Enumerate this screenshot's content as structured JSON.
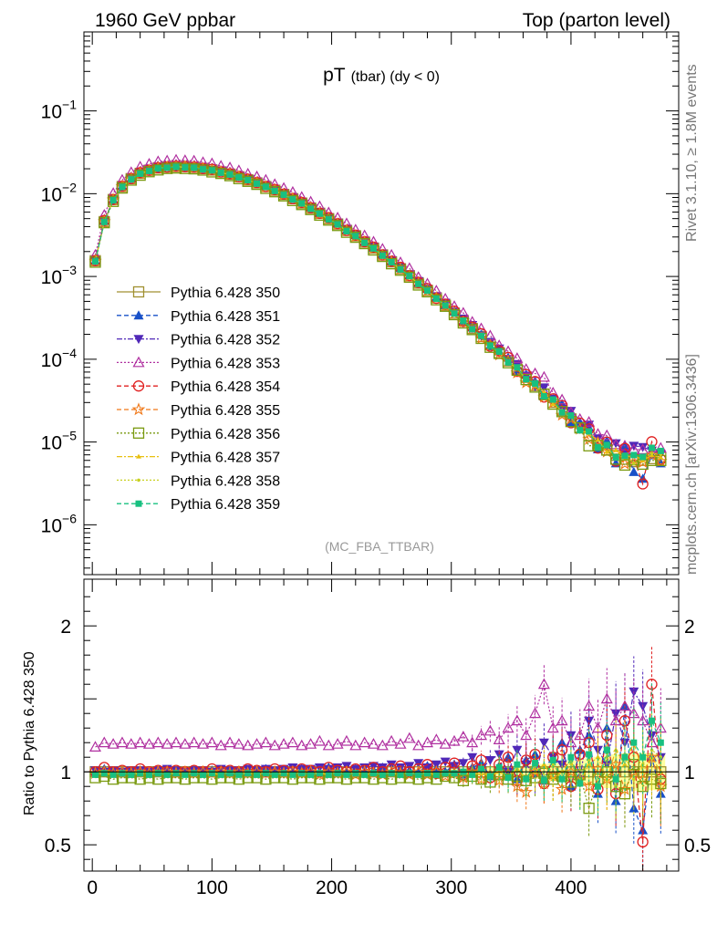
{
  "header": {
    "left_title": "1960 GeV ppbar",
    "right_title": "Top (parton level)"
  },
  "plot_title": {
    "main": "pT",
    "sub": "(tbar) (dy < 0)"
  },
  "analysis_tag": "(MC_FBA_TTBAR)",
  "side_labels": {
    "rivet": "Rivet 3.1.10, ≥ 1.8M events",
    "mcplots": "mcplots.cern.ch [arXiv:1306.3436]"
  },
  "ratio_ylabel": "Ratio to Pythia 6.428 350",
  "colors": {
    "s350": "#a09030",
    "s351": "#1850c8",
    "s352": "#5028b8",
    "s353": "#b030a0",
    "s354": "#e02020",
    "s355": "#f07818",
    "s356": "#7a9a10",
    "s357": "#e8c010",
    "s358": "#c8d020",
    "s359": "#18c080",
    "band": "#ffff80"
  },
  "chart_data": {
    "type": "scatter",
    "x_label": "",
    "main": {
      "y_scale": "log",
      "ylim": [
        2.5e-07,
        0.9
      ],
      "y_ticks": [
        {
          "value": 1e-06,
          "label": "10",
          "exp": "−6"
        },
        {
          "value": 1e-05,
          "label": "10",
          "exp": "−5"
        },
        {
          "value": 0.0001,
          "label": "10",
          "exp": "−4"
        },
        {
          "value": 0.001,
          "label": "10",
          "exp": "−3"
        },
        {
          "value": 0.01,
          "label": "10",
          "exp": "−2"
        },
        {
          "value": 0.1,
          "label": "10",
          "exp": "−1"
        }
      ]
    },
    "ratio": {
      "ylim": [
        0.32,
        2.32
      ],
      "y_ticks": [
        {
          "value": 0.5,
          "label": "0.5"
        },
        {
          "value": 1,
          "label": "1"
        },
        {
          "value": 2,
          "label": "2"
        }
      ]
    },
    "xlim": [
      -7,
      490
    ],
    "x_ticks": [
      {
        "value": 0,
        "label": "0"
      },
      {
        "value": 100,
        "label": "100"
      },
      {
        "value": 200,
        "label": "200"
      },
      {
        "value": 300,
        "label": "300"
      },
      {
        "value": 400,
        "label": "400"
      }
    ],
    "x": [
      2.5,
      10,
      17.5,
      25,
      32.5,
      40,
      47.5,
      55,
      62.5,
      70,
      77.5,
      85,
      92.5,
      100,
      107.5,
      115,
      122.5,
      130,
      137.5,
      145,
      152.5,
      160,
      167.5,
      175,
      182.5,
      190,
      197.5,
      205,
      212.5,
      220,
      227.5,
      235,
      242.5,
      250,
      257.5,
      265,
      272.5,
      280,
      287.5,
      295,
      302.5,
      310,
      317.5,
      325,
      332.5,
      340,
      347.5,
      355,
      362.5,
      370,
      377.5,
      385,
      392.5,
      400,
      407.5,
      415,
      422.5,
      430,
      437.5,
      445,
      452.5,
      460,
      467.5,
      475
    ],
    "reference": [
      0.00155,
      0.0046,
      0.0085,
      0.0122,
      0.0152,
      0.0176,
      0.0192,
      0.0204,
      0.021,
      0.0213,
      0.0212,
      0.0208,
      0.0201,
      0.0193,
      0.0183,
      0.0172,
      0.016,
      0.0147,
      0.0135,
      0.0122,
      0.011,
      0.0098,
      0.0087,
      0.0077,
      0.0067,
      0.0058,
      0.005,
      0.0043,
      0.0036,
      0.0031,
      0.0026,
      0.0022,
      0.00182,
      0.0015,
      0.00124,
      0.00102,
      0.00083,
      0.00068,
      0.00055,
      0.00045,
      0.00036,
      0.000292,
      0.000235,
      0.000188,
      0.00015,
      0.00012,
      9.55e-05,
      7.6e-05,
      6.05e-05,
      4.8e-05,
      3.8e-05,
      3.02e-05,
      2.4e-05,
      1.9e-05,
      1.51e-05,
      1.2e-05,
      9.6e-06,
      8e-06,
      6.9e-06,
      6.2e-06,
      5.8e-06,
      6e-06,
      6.3e-06,
      6.5e-06
    ],
    "series": [
      {
        "name": "Pythia 6.428 350",
        "key": "s350",
        "marker": "square-open",
        "line": "solid",
        "ratio": [
          1,
          1,
          1,
          1,
          1,
          1,
          1,
          1,
          1,
          1,
          1,
          1,
          1,
          1,
          1,
          1,
          1,
          1,
          1,
          1,
          1,
          1,
          1,
          1,
          1,
          1,
          1,
          1,
          1,
          1,
          1,
          1,
          1,
          1,
          1,
          1,
          1,
          1,
          1,
          1,
          1,
          1,
          1,
          1,
          1,
          1,
          1,
          1,
          1,
          1,
          1,
          1,
          1,
          1,
          1,
          1,
          1,
          1,
          1,
          1,
          1,
          1,
          1,
          1
        ]
      },
      {
        "name": "Pythia 6.428 351",
        "key": "s351",
        "marker": "triangle-up",
        "line": "dashed",
        "ratio": [
          1.0,
          1.02,
          0.99,
          1.01,
          1.0,
          1.01,
          1.0,
          1.0,
          1.01,
          1.0,
          1.0,
          1.01,
          1.0,
          1.01,
          1.0,
          1.0,
          1.01,
          1.0,
          1.01,
          1.02,
          1.0,
          1.01,
          1.0,
          1.02,
          1.01,
          1.0,
          1.03,
          1.01,
          1.0,
          1.02,
          1.0,
          1.01,
          1.03,
          1.0,
          1.02,
          1.01,
          1.0,
          1.04,
          1.02,
          1.0,
          1.05,
          0.98,
          1.03,
          1.06,
          0.97,
          1.04,
          1.1,
          0.95,
          1.08,
          1.12,
          0.94,
          1.09,
          1.2,
          0.9,
          1.15,
          1.25,
          0.85,
          1.3,
          0.8,
          1.45,
          0.75,
          0.6,
          1.1,
          0.85
        ]
      },
      {
        "name": "Pythia 6.428 352",
        "key": "s352",
        "marker": "triangle-down",
        "line": "dashdot",
        "ratio": [
          1.01,
          1.0,
          1.01,
          1.0,
          1.01,
          1.01,
          1.0,
          1.01,
          1.02,
          1.01,
          1.0,
          1.01,
          1.01,
          1.0,
          1.02,
          1.01,
          1.01,
          1.02,
          1.01,
          1.02,
          1.01,
          1.02,
          1.03,
          1.02,
          1.02,
          1.03,
          1.02,
          1.03,
          1.04,
          1.02,
          1.03,
          1.04,
          1.03,
          1.05,
          1.03,
          1.04,
          1.06,
          1.03,
          1.05,
          1.07,
          1.04,
          1.06,
          1.1,
          1.02,
          1.08,
          1.12,
          1.0,
          1.15,
          1.05,
          0.98,
          1.2,
          1.1,
          1.05,
          1.25,
          0.95,
          1.35,
          1.15,
          1.05,
          1.4,
          1.2,
          1.55,
          1.45,
          1.25,
          1.1
        ]
      },
      {
        "name": "Pythia 6.428 353",
        "key": "s353",
        "marker": "triangle-up-open",
        "line": "dotted",
        "ratio": [
          1.17,
          1.2,
          1.19,
          1.2,
          1.19,
          1.2,
          1.19,
          1.2,
          1.19,
          1.2,
          1.19,
          1.2,
          1.19,
          1.2,
          1.18,
          1.2,
          1.19,
          1.18,
          1.19,
          1.2,
          1.18,
          1.19,
          1.2,
          1.18,
          1.19,
          1.21,
          1.18,
          1.19,
          1.21,
          1.18,
          1.2,
          1.19,
          1.18,
          1.21,
          1.19,
          1.23,
          1.18,
          1.2,
          1.22,
          1.19,
          1.21,
          1.24,
          1.2,
          1.25,
          1.28,
          1.22,
          1.3,
          1.35,
          1.25,
          1.4,
          1.6,
          1.3,
          1.35,
          1.2,
          1.25,
          1.45,
          1.3,
          1.5,
          1.35,
          1.45,
          1.4,
          1.35,
          1.2,
          1.3
        ]
      },
      {
        "name": "Pythia 6.428 354",
        "key": "s354",
        "marker": "circle-open",
        "line": "dashed",
        "ratio": [
          1.0,
          1.03,
          1.0,
          1.01,
          1.0,
          1.02,
          1.0,
          1.01,
          1.0,
          1.01,
          1.0,
          1.01,
          1.0,
          1.02,
          1.0,
          1.01,
          1.0,
          1.02,
          1.01,
          1.0,
          1.02,
          1.01,
          1.0,
          1.02,
          1.01,
          1.0,
          1.03,
          1.01,
          1.0,
          1.02,
          1.01,
          1.03,
          1.0,
          1.02,
          1.04,
          1.0,
          1.02,
          1.05,
          0.99,
          1.03,
          1.06,
          0.98,
          1.04,
          1.08,
          0.96,
          1.05,
          1.1,
          0.94,
          1.08,
          1.12,
          0.92,
          1.1,
          1.15,
          0.9,
          1.12,
          1.2,
          0.88,
          1.25,
          0.85,
          1.35,
          1.1,
          0.52,
          1.6,
          0.95
        ]
      },
      {
        "name": "Pythia 6.428 355",
        "key": "s355",
        "marker": "star-open",
        "line": "dashed",
        "ratio": [
          0.99,
          1.0,
          0.99,
          1.0,
          0.99,
          1.0,
          0.99,
          1.0,
          1.0,
          0.99,
          1.0,
          0.99,
          1.0,
          0.99,
          1.0,
          0.99,
          1.0,
          0.99,
          1.0,
          0.99,
          1.0,
          0.99,
          1.0,
          0.99,
          1.0,
          0.98,
          1.0,
          0.99,
          1.0,
          0.98,
          1.0,
          0.99,
          0.98,
          1.0,
          0.99,
          0.98,
          1.0,
          0.98,
          1.0,
          0.97,
          0.99,
          0.96,
          1.0,
          0.95,
          0.98,
          0.94,
          0.99,
          0.9,
          0.86,
          1.0,
          0.92,
          0.98,
          0.88,
          1.0,
          0.95,
          0.9,
          1.02,
          0.95,
          1.05,
          0.88,
          1.0,
          0.95,
          1.1,
          0.9
        ]
      },
      {
        "name": "Pythia 6.428 356",
        "key": "s356",
        "marker": "square-open",
        "line": "dotted",
        "ratio": [
          0.96,
          0.97,
          0.95,
          0.96,
          0.96,
          0.95,
          0.96,
          0.95,
          0.96,
          0.96,
          0.95,
          0.96,
          0.96,
          0.95,
          0.96,
          0.96,
          0.95,
          0.96,
          0.96,
          0.95,
          0.96,
          0.96,
          0.95,
          0.96,
          0.96,
          0.95,
          0.96,
          0.96,
          0.95,
          0.96,
          0.96,
          0.95,
          0.96,
          0.95,
          0.96,
          0.96,
          0.95,
          0.96,
          0.95,
          0.97,
          0.96,
          0.94,
          0.97,
          0.95,
          0.93,
          0.98,
          0.95,
          0.97,
          0.94,
          0.96,
          0.99,
          0.95,
          0.97,
          0.93,
          0.98,
          0.75,
          0.95,
          1.0,
          0.9,
          0.85,
          1.05,
          0.9,
          0.95,
          0.92
        ]
      },
      {
        "name": "Pythia 6.428 357",
        "key": "s357",
        "marker": "tri-small",
        "line": "dashdot",
        "ratio": [
          0.98,
          0.99,
          0.98,
          0.99,
          0.98,
          0.99,
          0.98,
          0.99,
          0.98,
          0.99,
          0.98,
          0.99,
          0.98,
          0.99,
          0.98,
          0.99,
          0.98,
          0.99,
          0.98,
          0.99,
          0.98,
          0.99,
          0.98,
          0.99,
          0.98,
          0.99,
          0.98,
          0.99,
          0.98,
          0.99,
          0.98,
          0.99,
          0.98,
          0.99,
          0.98,
          0.99,
          0.98,
          0.99,
          0.98,
          0.99,
          0.98,
          0.99,
          0.98,
          0.99,
          0.97,
          1.0,
          0.96,
          1.02,
          0.95,
          1.0,
          1.05,
          0.95,
          1.0,
          1.08,
          0.92,
          1.05,
          1.1,
          0.95,
          1.15,
          1.05,
          1.2,
          1.0,
          1.1,
          1.0
        ]
      },
      {
        "name": "Pythia 6.428 358",
        "key": "s358",
        "marker": "dot-small",
        "line": "dotted",
        "ratio": [
          0.99,
          1.0,
          0.99,
          1.0,
          0.99,
          1.0,
          0.99,
          1.0,
          0.99,
          1.0,
          0.99,
          1.0,
          0.99,
          1.0,
          0.99,
          1.0,
          0.99,
          1.0,
          0.99,
          1.0,
          0.99,
          1.0,
          0.99,
          1.0,
          0.99,
          1.0,
          0.99,
          1.0,
          0.99,
          1.0,
          0.99,
          1.0,
          0.99,
          1.0,
          0.99,
          1.0,
          0.99,
          1.0,
          0.99,
          1.0,
          0.99,
          1.0,
          0.98,
          1.01,
          0.97,
          1.02,
          0.96,
          1.03,
          0.95,
          1.04,
          0.94,
          1.05,
          0.95,
          1.06,
          0.93,
          1.08,
          0.92,
          1.1,
          0.9,
          1.12,
          0.95,
          1.05,
          1.15,
          1.1
        ]
      },
      {
        "name": "Pythia 6.428 359",
        "key": "s359",
        "marker": "square-small",
        "line": "dashed",
        "ratio": [
          0.98,
          0.99,
          0.98,
          0.99,
          0.98,
          0.99,
          0.98,
          0.99,
          0.98,
          0.99,
          0.98,
          0.99,
          0.98,
          0.99,
          0.98,
          0.99,
          0.98,
          0.99,
          0.98,
          0.99,
          0.98,
          0.99,
          0.98,
          0.99,
          0.98,
          0.99,
          0.98,
          0.99,
          0.98,
          0.99,
          0.98,
          0.99,
          0.98,
          0.99,
          0.98,
          0.99,
          0.98,
          0.99,
          0.98,
          0.99,
          0.99,
          1.0,
          0.98,
          1.02,
          0.97,
          1.03,
          0.96,
          1.05,
          0.95,
          1.06,
          0.94,
          1.08,
          0.95,
          1.1,
          0.92,
          1.12,
          0.9,
          1.15,
          0.95,
          1.1,
          1.2,
          1.1,
          1.35,
          1.2
        ]
      }
    ]
  }
}
